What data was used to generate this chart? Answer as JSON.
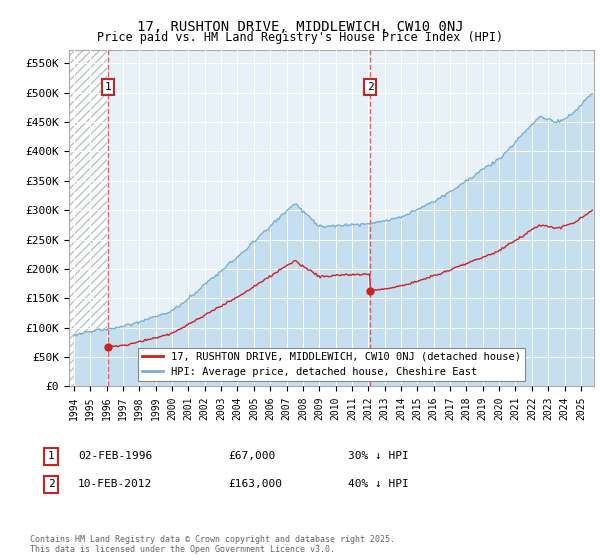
{
  "title": "17, RUSHTON DRIVE, MIDDLEWICH, CW10 0NJ",
  "subtitle": "Price paid vs. HM Land Registry's House Price Index (HPI)",
  "ylabel_ticks": [
    "£0",
    "£50K",
    "£100K",
    "£150K",
    "£200K",
    "£250K",
    "£300K",
    "£350K",
    "£400K",
    "£450K",
    "£500K",
    "£550K"
  ],
  "ytick_values": [
    0,
    50000,
    100000,
    150000,
    200000,
    250000,
    300000,
    350000,
    400000,
    450000,
    500000,
    550000
  ],
  "xmin": 1993.7,
  "xmax": 2025.8,
  "ymin": 0,
  "ymax": 572000,
  "sale1_date": 1996.085,
  "sale1_price": 67000,
  "sale2_date": 2012.11,
  "sale2_price": 163000,
  "hpi_color": "#7ab0d4",
  "hpi_fill_color": "#c5dff0",
  "price_color": "#cc2222",
  "background_color": "#e8f0f8",
  "legend_label1": "17, RUSHTON DRIVE, MIDDLEWICH, CW10 0NJ (detached house)",
  "legend_label2": "HPI: Average price, detached house, Cheshire East",
  "footnote": "Contains HM Land Registry data © Crown copyright and database right 2025.\nThis data is licensed under the Open Government Licence v3.0.",
  "annotation1_box": "1",
  "annotation2_box": "2",
  "ann1_date": "02-FEB-1996",
  "ann1_price": "£67,000",
  "ann1_pct": "30% ↓ HPI",
  "ann2_date": "10-FEB-2012",
  "ann2_price": "£163,000",
  "ann2_pct": "40% ↓ HPI"
}
